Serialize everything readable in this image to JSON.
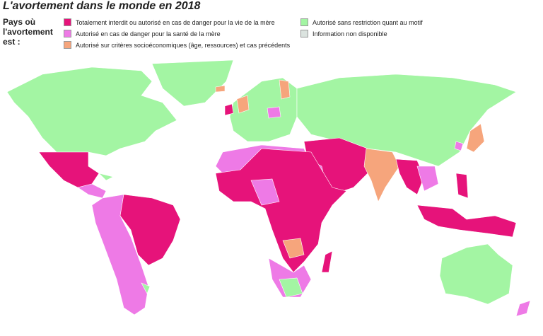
{
  "header": {
    "title": "L'avortement dans le monde en 2018",
    "legend_heading": "Pays où l'avortement est :"
  },
  "legend": [
    {
      "label": "Totalement interdit ou autorisé en cas de danger pour la vie de la mère",
      "color": "#e6137a"
    },
    {
      "label": "Autorisé en cas de danger pour la santé de la mère",
      "color": "#ee7ae6"
    },
    {
      "label": "Autorisé sur critères socioéconomiques (âge, ressources) et cas précédents",
      "color": "#f6a57c"
    },
    {
      "label": "Autorisé sans restriction quant au motif",
      "color": "#a3f5a3"
    },
    {
      "label": "Information non disponible",
      "color": "#dbe3df"
    }
  ]
}
